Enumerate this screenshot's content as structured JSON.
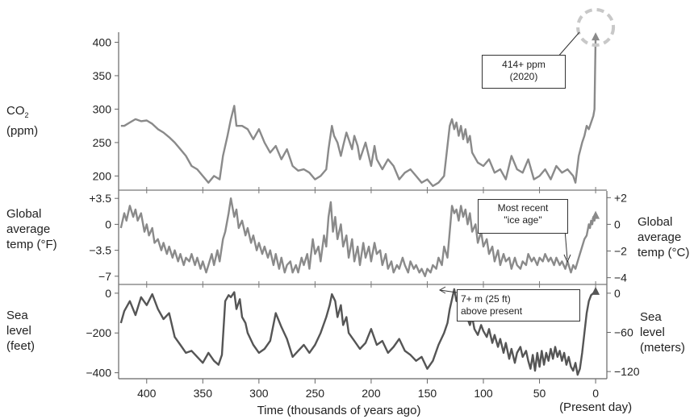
{
  "chart_data": {
    "type": "line",
    "x_axis": {
      "label": "Time (thousands of years ago)",
      "ticks": [
        400,
        350,
        300,
        250,
        200,
        150,
        100,
        50,
        0
      ],
      "present_label": "(Present day)",
      "range": [
        425,
        -10
      ]
    },
    "panels": [
      {
        "id": "co2",
        "left_label": "CO₂\n(ppm)",
        "left_ticks": [
          "400",
          "350",
          "300",
          "250",
          "200"
        ],
        "left_tick_values": [
          400,
          350,
          300,
          250,
          200
        ],
        "ylim": [
          180,
          415
        ],
        "color": "#8a8a8a",
        "series": {
          "name": "CO2",
          "x": [
            423,
            420,
            415,
            410,
            405,
            400,
            395,
            390,
            385,
            380,
            375,
            370,
            365,
            360,
            355,
            350,
            345,
            340,
            335,
            332,
            328,
            325,
            322,
            320,
            315,
            310,
            305,
            300,
            295,
            290,
            285,
            280,
            275,
            270,
            265,
            260,
            255,
            250,
            245,
            240,
            238,
            235,
            233,
            230,
            227,
            225,
            222,
            220,
            217,
            215,
            212,
            210,
            205,
            200,
            197,
            195,
            190,
            185,
            180,
            175,
            170,
            165,
            160,
            155,
            150,
            145,
            140,
            135,
            133,
            130,
            128,
            126,
            124,
            122,
            120,
            118,
            116,
            114,
            112,
            110,
            105,
            100,
            95,
            90,
            85,
            80,
            75,
            70,
            65,
            60,
            55,
            50,
            45,
            40,
            35,
            30,
            25,
            20,
            18,
            15,
            12,
            10,
            8,
            6,
            4,
            3,
            2,
            1,
            0
          ],
          "y": [
            275,
            275,
            280,
            285,
            282,
            283,
            278,
            270,
            265,
            258,
            250,
            240,
            230,
            215,
            210,
            200,
            190,
            200,
            195,
            230,
            260,
            285,
            305,
            275,
            275,
            270,
            255,
            270,
            250,
            235,
            245,
            225,
            240,
            215,
            208,
            210,
            205,
            195,
            200,
            210,
            240,
            275,
            260,
            250,
            230,
            245,
            265,
            255,
            240,
            260,
            245,
            225,
            250,
            215,
            245,
            225,
            210,
            225,
            215,
            195,
            205,
            210,
            200,
            190,
            195,
            185,
            190,
            200,
            230,
            275,
            285,
            270,
            280,
            260,
            275,
            255,
            270,
            250,
            260,
            235,
            220,
            215,
            225,
            205,
            210,
            195,
            230,
            210,
            205,
            225,
            195,
            200,
            210,
            195,
            215,
            205,
            210,
            200,
            190,
            230,
            250,
            260,
            275,
            270,
            280,
            285,
            290,
            300,
            410
          ]
        }
      },
      {
        "id": "temp",
        "left_label": "Global\naverage\ntemp (°F)",
        "left_ticks": [
          "+3.5",
          "0",
          "−3.5",
          "−7"
        ],
        "left_tick_values": [
          3.5,
          0,
          -3.5,
          -7
        ],
        "right_label": "Global\naverage\ntemp (°C)",
        "right_ticks": [
          "+2",
          "0",
          "−2",
          "−4"
        ],
        "right_tick_values_f": [
          3.6,
          0,
          -3.6,
          -7.2
        ],
        "ylim": [
          -8,
          4.5
        ],
        "color": "#8a8a8a",
        "series": {
          "name": "Temperature",
          "x": [
            423,
            420,
            418,
            415,
            412,
            410,
            408,
            405,
            402,
            400,
            398,
            395,
            393,
            390,
            387,
            385,
            382,
            380,
            377,
            375,
            372,
            370,
            367,
            365,
            362,
            360,
            357,
            355,
            352,
            350,
            347,
            345,
            342,
            340,
            337,
            335,
            332,
            330,
            327,
            325,
            322,
            320,
            318,
            315,
            312,
            310,
            307,
            305,
            302,
            300,
            297,
            295,
            292,
            290,
            287,
            285,
            282,
            280,
            277,
            275,
            272,
            270,
            267,
            265,
            262,
            260,
            257,
            255,
            252,
            250,
            247,
            245,
            242,
            240,
            238,
            236,
            234,
            232,
            230,
            227,
            225,
            222,
            220,
            217,
            215,
            212,
            210,
            207,
            205,
            202,
            200,
            197,
            195,
            192,
            190,
            187,
            185,
            182,
            180,
            177,
            175,
            172,
            170,
            167,
            165,
            162,
            160,
            157,
            155,
            152,
            150,
            147,
            145,
            142,
            140,
            137,
            135,
            132,
            130,
            128,
            126,
            124,
            122,
            120,
            118,
            116,
            114,
            112,
            110,
            107,
            105,
            102,
            100,
            97,
            95,
            92,
            90,
            87,
            85,
            82,
            80,
            77,
            75,
            72,
            70,
            67,
            65,
            62,
            60,
            57,
            55,
            52,
            50,
            47,
            45,
            42,
            40,
            37,
            35,
            32,
            30,
            27,
            25,
            22,
            20,
            18,
            15,
            12,
            10,
            8,
            6,
            5,
            4,
            3,
            2,
            1,
            0
          ],
          "y": [
            -0.5,
            1.5,
            0.5,
            2.5,
            1.0,
            2.0,
            0.5,
            1.5,
            -1.0,
            0.0,
            -1.5,
            -0.5,
            -2.5,
            -2.0,
            -3.5,
            -2.5,
            -4.0,
            -3.0,
            -4.5,
            -3.5,
            -5.0,
            -4.0,
            -5.5,
            -4.5,
            -5.0,
            -4.0,
            -5.5,
            -4.5,
            -6.0,
            -5.0,
            -6.5,
            -5.5,
            -4.0,
            -5.5,
            -3.5,
            -5.0,
            -2.0,
            -1.0,
            1.5,
            3.5,
            1.0,
            2.0,
            -0.5,
            0.5,
            -1.5,
            -0.5,
            -2.5,
            -1.5,
            -3.5,
            -2.5,
            -4.0,
            -3.0,
            -4.5,
            -3.5,
            -5.5,
            -4.0,
            -6.0,
            -4.5,
            -6.5,
            -5.5,
            -5.0,
            -6.5,
            -5.5,
            -6.5,
            -4.5,
            -5.5,
            -4.0,
            -6.0,
            -2.0,
            -4.0,
            -3.0,
            -5.0,
            -1.5,
            -3.0,
            1.0,
            3.0,
            -1.0,
            1.0,
            -2.0,
            0.0,
            -3.0,
            -1.5,
            -4.5,
            -2.0,
            -5.0,
            -3.0,
            -5.5,
            -2.5,
            -4.5,
            -3.0,
            -5.0,
            -2.5,
            -4.0,
            -3.5,
            -5.5,
            -4.0,
            -6.0,
            -5.0,
            -6.5,
            -5.5,
            -6.0,
            -4.5,
            -5.5,
            -6.5,
            -5.0,
            -6.0,
            -5.5,
            -6.5,
            -6.0,
            -7.0,
            -6.0,
            -6.5,
            -5.5,
            -6.0,
            -4.5,
            -5.5,
            -3.0,
            -4.5,
            -1.0,
            2.5,
            1.5,
            2.0,
            0.5,
            2.5,
            1.0,
            2.0,
            0.0,
            1.5,
            -1.0,
            0.0,
            -2.5,
            -1.0,
            -3.0,
            -2.0,
            -4.0,
            -3.0,
            -5.0,
            -3.5,
            -5.5,
            -4.0,
            -5.0,
            -4.5,
            -6.0,
            -4.5,
            -5.5,
            -6.0,
            -5.0,
            -5.5,
            -4.0,
            -5.0,
            -4.5,
            -5.5,
            -4.5,
            -5.0,
            -4.0,
            -5.0,
            -4.5,
            -5.5,
            -4.5,
            -5.5,
            -5.0,
            -6.0,
            -5.0,
            -6.5,
            -5.5,
            -6.0,
            -4.5,
            -3.0,
            -2.0,
            -1.5,
            0.0,
            -0.5,
            0.5,
            0.0,
            1.0,
            0.5,
            1.5
          ]
        }
      },
      {
        "id": "sea",
        "left_label": "Sea\nlevel\n(feet)",
        "left_ticks": [
          "0",
          "−200",
          "−400"
        ],
        "left_tick_values": [
          0,
          -200,
          -400
        ],
        "right_label": "Sea\nlevel\n(meters)",
        "right_ticks": [
          "0",
          "−60",
          "−120"
        ],
        "right_tick_values_ft": [
          0,
          -197,
          -394
        ],
        "ylim": [
          -430,
          40
        ],
        "color": "#555555",
        "series": {
          "name": "Sea level",
          "x": [
            423,
            420,
            415,
            410,
            405,
            400,
            395,
            390,
            385,
            380,
            375,
            370,
            365,
            360,
            355,
            350,
            345,
            340,
            336,
            333,
            330,
            327,
            325,
            322,
            320,
            317,
            315,
            312,
            310,
            305,
            300,
            295,
            290,
            285,
            280,
            275,
            270,
            265,
            260,
            255,
            250,
            245,
            240,
            237,
            235,
            232,
            230,
            227,
            225,
            222,
            220,
            215,
            210,
            205,
            200,
            195,
            190,
            185,
            180,
            175,
            170,
            165,
            160,
            155,
            150,
            145,
            140,
            135,
            132,
            130,
            128,
            126,
            124,
            122,
            120,
            118,
            116,
            114,
            112,
            110,
            108,
            105,
            102,
            100,
            97,
            95,
            92,
            90,
            87,
            85,
            82,
            80,
            77,
            75,
            72,
            70,
            67,
            65,
            62,
            60,
            58,
            56,
            54,
            52,
            50,
            48,
            46,
            44,
            42,
            40,
            38,
            36,
            34,
            32,
            30,
            28,
            26,
            24,
            22,
            20,
            18,
            16,
            14,
            12,
            10,
            8,
            6,
            4,
            2,
            0
          ],
          "y": [
            -150,
            -90,
            -40,
            -110,
            -20,
            -60,
            -5,
            -80,
            -130,
            -100,
            -220,
            -260,
            -300,
            -290,
            -320,
            -350,
            -300,
            -340,
            -360,
            -310,
            -40,
            -10,
            -20,
            5,
            -80,
            -30,
            -120,
            -150,
            -200,
            -260,
            -300,
            -280,
            -240,
            -100,
            -170,
            -230,
            -320,
            -290,
            -260,
            -300,
            -260,
            -200,
            -120,
            -60,
            -5,
            -40,
            -120,
            -60,
            -160,
            -120,
            -200,
            -240,
            -280,
            -250,
            -180,
            -260,
            -240,
            -300,
            -270,
            -230,
            -290,
            -310,
            -340,
            -320,
            -380,
            -340,
            -260,
            -200,
            -150,
            -80,
            -30,
            20,
            -40,
            -10,
            -60,
            -20,
            -100,
            -130,
            -160,
            -120,
            -180,
            -210,
            -160,
            -190,
            -220,
            -180,
            -250,
            -210,
            -270,
            -230,
            -300,
            -250,
            -330,
            -280,
            -350,
            -300,
            -270,
            -320,
            -290,
            -340,
            -380,
            -310,
            -390,
            -300,
            -370,
            -290,
            -360,
            -300,
            -340,
            -280,
            -330,
            -270,
            -320,
            -290,
            -340,
            -300,
            -360,
            -320,
            -370,
            -390,
            -350,
            -410,
            -380,
            -300,
            -200,
            -100,
            -40,
            -10,
            0,
            10
          ]
        }
      }
    ],
    "annotations": [
      {
        "text": "414+ ppm\n(2020)",
        "target": "co2"
      },
      {
        "text": "Most recent\n\"ice age\"",
        "target": "temp"
      },
      {
        "text": "7+ m  (25 ft)\nabove present",
        "target": "sea"
      }
    ]
  }
}
